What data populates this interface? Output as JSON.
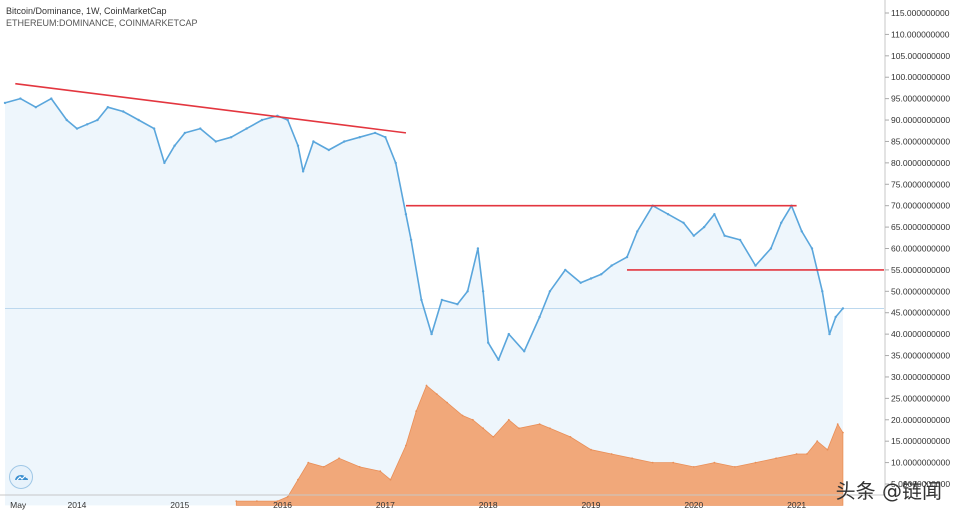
{
  "legend": {
    "line1": "Bitcoin/Dominance, 1W, CoinMarketCap",
    "line2": "ETHEREUM:DOMINANCE, COINMARKETCAP"
  },
  "watermark": "头条 @链闻",
  "chart_data": {
    "type": "area",
    "title": "Bitcoin/Dominance, 1W, CoinMarketCap",
    "ylim": [
      0,
      115
    ],
    "y_ticks": [
      5,
      10,
      15,
      20,
      25,
      30,
      35,
      40,
      45,
      50,
      55,
      60,
      65,
      70,
      75,
      80,
      85,
      90,
      95,
      100,
      105,
      110,
      115
    ],
    "y_tick_labels": [
      "5.00000000000",
      "10.0000000000",
      "15.0000000000",
      "20.0000000000",
      "25.0000000000",
      "30.0000000000",
      "35.0000000000",
      "40.0000000000",
      "45.0000000000",
      "50.0000000000",
      "55.0000000000",
      "60.0000000000",
      "65.0000000000",
      "70.0000000000",
      "75.0000000000",
      "80.0000000000",
      "85.0000000000",
      "90.0000000000",
      "95.0000000000",
      "100.000000000",
      "105.000000000",
      "110.000000000",
      "115.000000000"
    ],
    "x_tick_labels": [
      "May",
      "2014",
      "2015",
      "2016",
      "2017",
      "2018",
      "2019",
      "2020",
      "2021"
    ],
    "x_tick_values": [
      2013.35,
      2014.0,
      2015.0,
      2016.0,
      2017.0,
      2018.0,
      2019.0,
      2020.0,
      2021.0
    ],
    "xlim": [
      2013.3,
      2021.85
    ],
    "series": [
      {
        "name": "Bitcoin/Dominance, 1W, CoinMarketCap",
        "color": "#5aa6dc",
        "x": [
          2013.3,
          2013.45,
          2013.6,
          2013.75,
          2013.9,
          2014.0,
          2014.1,
          2014.2,
          2014.3,
          2014.45,
          2014.6,
          2014.75,
          2014.85,
          2014.95,
          2015.05,
          2015.2,
          2015.35,
          2015.5,
          2015.65,
          2015.8,
          2015.95,
          2016.05,
          2016.15,
          2016.2,
          2016.3,
          2016.45,
          2016.6,
          2016.75,
          2016.9,
          2017.0,
          2017.1,
          2017.2,
          2017.25,
          2017.35,
          2017.45,
          2017.55,
          2017.7,
          2017.8,
          2017.9,
          2017.95,
          2018.0,
          2018.1,
          2018.2,
          2018.35,
          2018.5,
          2018.6,
          2018.75,
          2018.9,
          2019.0,
          2019.1,
          2019.2,
          2019.35,
          2019.45,
          2019.6,
          2019.75,
          2019.9,
          2020.0,
          2020.1,
          2020.2,
          2020.3,
          2020.45,
          2020.6,
          2020.75,
          2020.85,
          2020.95,
          2021.05,
          2021.15,
          2021.25,
          2021.32,
          2021.38,
          2021.45
        ],
        "y": [
          94,
          95,
          93,
          95,
          90,
          88,
          89,
          90,
          93,
          92,
          90,
          88,
          80,
          84,
          87,
          88,
          85,
          86,
          88,
          90,
          91,
          90,
          84,
          78,
          85,
          83,
          85,
          86,
          87,
          86,
          80,
          68,
          62,
          48,
          40,
          48,
          47,
          50,
          60,
          50,
          38,
          34,
          40,
          36,
          44,
          50,
          55,
          52,
          53,
          54,
          56,
          58,
          64,
          70,
          68,
          66,
          63,
          65,
          68,
          63,
          62,
          56,
          60,
          66,
          70,
          64,
          60,
          50,
          40,
          44,
          46
        ]
      },
      {
        "name": "ETHEREUM:DOMINANCE, COINMARKETCAP",
        "color": "#f0a373",
        "x": [
          2015.55,
          2015.75,
          2015.95,
          2016.05,
          2016.15,
          2016.25,
          2016.4,
          2016.55,
          2016.75,
          2016.95,
          2017.05,
          2017.2,
          2017.3,
          2017.4,
          2017.5,
          2017.6,
          2017.75,
          2017.85,
          2017.95,
          2018.05,
          2018.2,
          2018.3,
          2018.5,
          2018.6,
          2018.8,
          2019.0,
          2019.2,
          2019.4,
          2019.6,
          2019.8,
          2020.0,
          2020.2,
          2020.4,
          2020.6,
          2020.8,
          2021.0,
          2021.1,
          2021.2,
          2021.3,
          2021.4,
          2021.45
        ],
        "y": [
          1,
          1,
          1,
          2,
          6,
          10,
          9,
          11,
          9,
          8,
          6,
          14,
          22,
          28,
          26,
          24,
          21,
          20,
          18,
          16,
          20,
          18,
          19,
          18,
          16,
          13,
          12,
          11,
          10,
          10,
          9,
          10,
          9,
          10,
          11,
          12,
          12,
          15,
          13,
          19,
          17
        ]
      }
    ],
    "annotations": [
      {
        "type": "trendline",
        "color": "#e3363f",
        "x": [
          2013.4,
          2017.2
        ],
        "y": [
          98.5,
          87
        ]
      },
      {
        "type": "horizontal",
        "color": "#e3363f",
        "x": [
          2017.2,
          2021.0
        ],
        "y": [
          70,
          70
        ]
      },
      {
        "type": "horizontal",
        "color": "#e3363f",
        "x": [
          2019.35,
          2021.85
        ],
        "y": [
          55,
          55
        ]
      }
    ],
    "current_price_line": 46,
    "grid": false
  }
}
